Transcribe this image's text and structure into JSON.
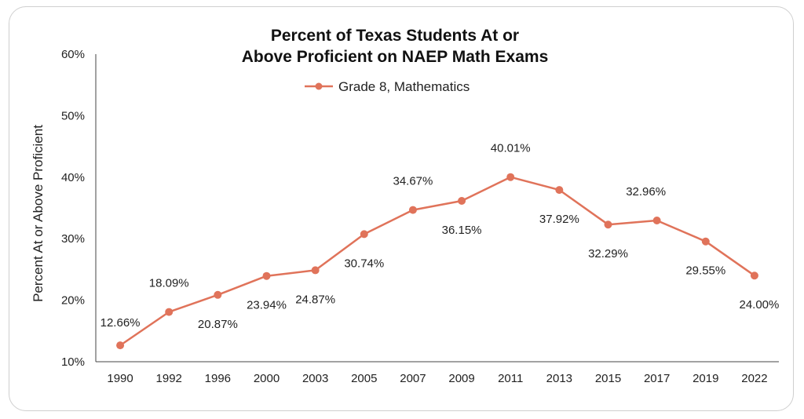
{
  "chart_data": {
    "type": "line",
    "title_line1": "Percent of Texas Students At or",
    "title_line2": "Above Proficient on NAEP Math Exams",
    "ylabel": "Percent At or Above Proficient",
    "xlabel": "",
    "ylim": [
      10,
      60
    ],
    "yticks": [
      "10%",
      "20%",
      "30%",
      "40%",
      "50%",
      "60%"
    ],
    "grid": false,
    "legend_position": "top-center",
    "color": "#E0735A",
    "categories": [
      "1990",
      "1992",
      "1996",
      "2000",
      "2003",
      "2005",
      "2007",
      "2009",
      "2011",
      "2013",
      "2015",
      "2017",
      "2019",
      "2022"
    ],
    "series": [
      {
        "name": "Grade 8, Mathematics",
        "values": [
          12.66,
          18.09,
          20.87,
          23.94,
          24.87,
          30.74,
          34.67,
          36.15,
          40.01,
          37.92,
          32.29,
          32.96,
          29.55,
          24.0
        ],
        "labels": [
          "12.66%",
          "18.09%",
          "20.87%",
          "23.94%",
          "24.87%",
          "30.74%",
          "34.67%",
          "36.15%",
          "40.01%",
          "37.92%",
          "32.29%",
          "32.96%",
          "29.55%",
          "24.00%"
        ]
      }
    ]
  }
}
